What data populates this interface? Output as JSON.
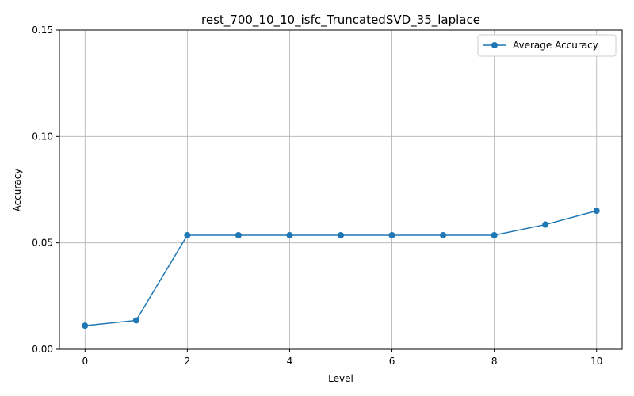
{
  "chart_data": {
    "type": "line",
    "title": "rest_700_10_10_isfc_TruncatedSVD_35_laplace",
    "xlabel": "Level",
    "ylabel": "Accuracy",
    "xlim": [
      -0.5,
      10.5
    ],
    "ylim": [
      0,
      0.15
    ],
    "xticks": [
      0,
      2,
      4,
      6,
      8,
      10
    ],
    "xtick_labels": [
      "0",
      "2",
      "4",
      "6",
      "8",
      "10"
    ],
    "yticks": [
      0,
      0.05,
      0.1,
      0.15
    ],
    "ytick_labels": [
      "0.00",
      "0.05",
      "0.10",
      "0.15"
    ],
    "grid": true,
    "legend_position": "top-right",
    "series": [
      {
        "name": "Average Accuracy",
        "color": "#1f77b4",
        "marker": "circle",
        "x": [
          0,
          1,
          2,
          3,
          4,
          5,
          6,
          7,
          8,
          9,
          10
        ],
        "y": [
          0.0111,
          0.0136,
          0.0536,
          0.0536,
          0.0536,
          0.0536,
          0.0536,
          0.0536,
          0.0536,
          0.0586,
          0.0651
        ]
      }
    ]
  }
}
